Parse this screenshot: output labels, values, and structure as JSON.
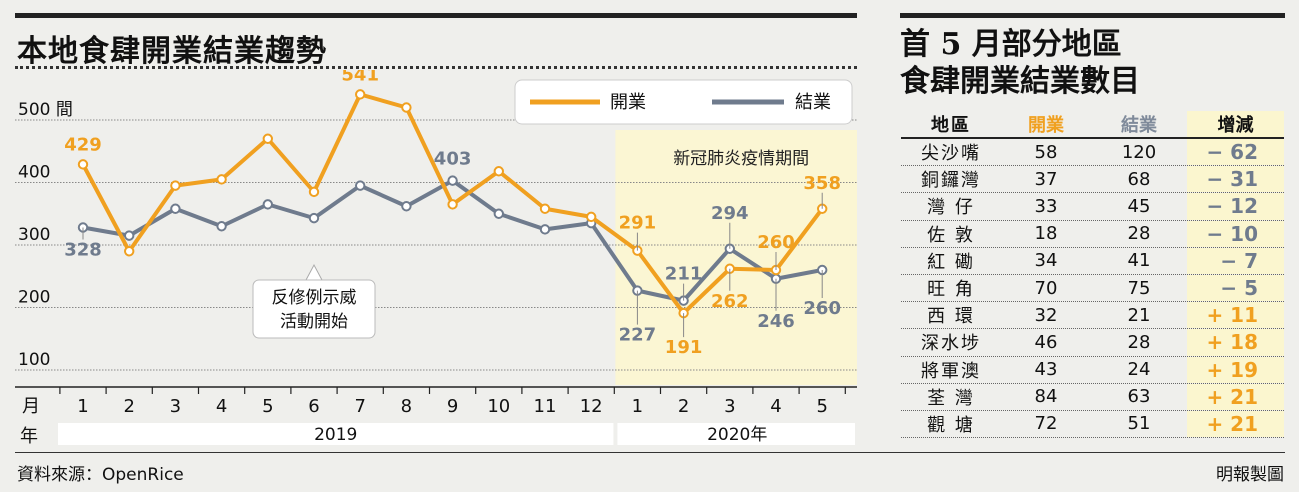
{
  "left_title": "本地食肆開業結業趨勢",
  "right_title_line1": "首 5 月部分地區",
  "right_title_line2": "食肆開業結業數目",
  "chart_data": {
    "type": "line",
    "title": "本地食肆開業結業趨勢",
    "ylabel": "間",
    "ylim": [
      100,
      500
    ],
    "y_ticks": [
      "500 間",
      "400",
      "300",
      "200",
      "100"
    ],
    "x_row_label": "月",
    "year_row_label": "年",
    "categories": [
      "1",
      "2",
      "3",
      "4",
      "5",
      "6",
      "7",
      "8",
      "9",
      "10",
      "11",
      "12",
      "1",
      "2",
      "3",
      "4",
      "5"
    ],
    "years": [
      {
        "label": "2019",
        "months": 12
      },
      {
        "label": "2020年",
        "months": 5
      }
    ],
    "series": [
      {
        "name": "開業",
        "color": "#f0a020",
        "values": [
          429,
          290,
          395,
          405,
          470,
          385,
          541,
          520,
          365,
          418,
          358,
          345,
          291,
          191,
          262,
          260,
          358
        ]
      },
      {
        "name": "結業",
        "color": "#6f7b8d",
        "values": [
          328,
          315,
          358,
          330,
          365,
          343,
          395,
          362,
          403,
          350,
          325,
          335,
          227,
          211,
          294,
          246,
          260
        ]
      }
    ],
    "data_labels": [
      {
        "series": 0,
        "index": 0,
        "text": "429"
      },
      {
        "series": 0,
        "index": 6,
        "text": "541"
      },
      {
        "series": 0,
        "index": 12,
        "text": "291"
      },
      {
        "series": 0,
        "index": 13,
        "text": "191"
      },
      {
        "series": 0,
        "index": 14,
        "text": "262"
      },
      {
        "series": 0,
        "index": 15,
        "text": "260"
      },
      {
        "series": 0,
        "index": 16,
        "text": "358"
      },
      {
        "series": 1,
        "index": 0,
        "text": "328"
      },
      {
        "series": 1,
        "index": 8,
        "text": "403"
      },
      {
        "series": 1,
        "index": 12,
        "text": "227"
      },
      {
        "series": 1,
        "index": 13,
        "text": "211"
      },
      {
        "series": 1,
        "index": 14,
        "text": "294"
      },
      {
        "series": 1,
        "index": 15,
        "text": "246"
      },
      {
        "series": 1,
        "index": 16,
        "text": "260"
      }
    ],
    "annotations": [
      {
        "text_lines": [
          "反修例示威",
          "活動開始"
        ],
        "index": 5
      },
      {
        "text": "新冠肺炎疫情期間",
        "from_index": 12
      }
    ],
    "legend": "top-right",
    "grid": true
  },
  "table": {
    "headers": [
      "地區",
      "開業",
      "結業",
      "增減"
    ],
    "rows": [
      {
        "district": "尖沙嘴",
        "open": "58",
        "close": "120",
        "change": "− 62",
        "sign": "neg"
      },
      {
        "district": "銅鑼灣",
        "open": "37",
        "close": "68",
        "change": "− 31",
        "sign": "neg"
      },
      {
        "district": "灣 仔",
        "open": "33",
        "close": "45",
        "change": "− 12",
        "sign": "neg"
      },
      {
        "district": "佐 敦",
        "open": "18",
        "close": "28",
        "change": "− 10",
        "sign": "neg"
      },
      {
        "district": "紅 磡",
        "open": "34",
        "close": "41",
        "change": "− 7",
        "sign": "neg"
      },
      {
        "district": "旺 角",
        "open": "70",
        "close": "75",
        "change": "− 5",
        "sign": "neg"
      },
      {
        "district": "西 環",
        "open": "32",
        "close": "21",
        "change": "+ 11",
        "sign": "pos"
      },
      {
        "district": "深水埗",
        "open": "46",
        "close": "28",
        "change": "+ 18",
        "sign": "pos"
      },
      {
        "district": "將軍澳",
        "open": "43",
        "close": "24",
        "change": "+ 19",
        "sign": "pos"
      },
      {
        "district": "荃 灣",
        "open": "84",
        "close": "63",
        "change": "+ 21",
        "sign": "pos"
      },
      {
        "district": "觀 塘",
        "open": "72",
        "close": "51",
        "change": "+ 21",
        "sign": "pos"
      }
    ]
  },
  "source": "資料來源：OpenRice",
  "credit": "明報製圖"
}
